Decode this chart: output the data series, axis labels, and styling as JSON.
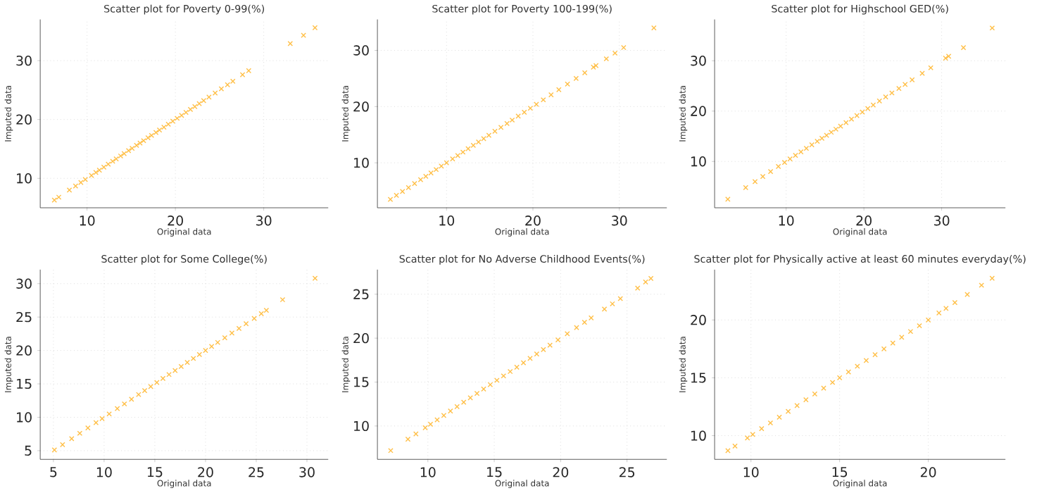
{
  "chart_data": [
    {
      "type": "scatter",
      "title": "Scatter plot for Poverty 0-99(%)",
      "xlabel": "Original data",
      "ylabel": "Imputed data",
      "color": "#ffbf47",
      "marker": "cross",
      "grid": true,
      "xlim": [
        4.7,
        37.3
      ],
      "ylim": [
        5,
        37
      ],
      "xticks": [
        10,
        20,
        30
      ],
      "yticks": [
        10,
        20,
        30
      ],
      "x": [
        6.3,
        6.8,
        8,
        8.7,
        9.3,
        9.8,
        10.5,
        11,
        11.4,
        11.9,
        12.4,
        12.9,
        13.3,
        13.8,
        14.2,
        14.7,
        15.1,
        15.6,
        16,
        16.4,
        16.9,
        17.3,
        17.8,
        18.2,
        18.7,
        19.2,
        19.7,
        20.2,
        20.7,
        21.2,
        21.7,
        22.2,
        22.7,
        23.2,
        23.8,
        24.5,
        25.2,
        25.9,
        26.5,
        27.6,
        28.3,
        33,
        34.5,
        35.8
      ],
      "values": [
        6.3,
        6.8,
        8,
        8.7,
        9.3,
        9.8,
        10.5,
        11,
        11.4,
        11.9,
        12.4,
        12.9,
        13.3,
        13.8,
        14.2,
        14.7,
        15.1,
        15.6,
        16,
        16.4,
        16.9,
        17.3,
        17.8,
        18.2,
        18.7,
        19.2,
        19.7,
        20.2,
        20.7,
        21.2,
        21.7,
        22.2,
        22.7,
        23.2,
        23.8,
        24.5,
        25.2,
        25.9,
        26.5,
        27.6,
        28.3,
        32.9,
        34.3,
        35.6
      ]
    },
    {
      "type": "scatter",
      "title": "Scatter plot for Poverty 100-199(%)",
      "xlabel": "Original data",
      "ylabel": "Imputed data",
      "color": "#ffbf47",
      "marker": "cross",
      "grid": true,
      "xlim": [
        2,
        35.5
      ],
      "ylim": [
        2,
        35.5
      ],
      "xticks": [
        10,
        20,
        30
      ],
      "yticks": [
        10,
        20,
        30
      ],
      "x": [
        3.5,
        4.2,
        4.9,
        5.6,
        6.3,
        7,
        7.6,
        8.2,
        8.8,
        9.4,
        10,
        10.7,
        11.3,
        11.9,
        12.5,
        13.1,
        13.7,
        14.3,
        14.9,
        15.6,
        16.3,
        17,
        17.6,
        18.3,
        19,
        19.7,
        20.4,
        21.2,
        22.1,
        23,
        24,
        25,
        26,
        27,
        27.3,
        28.5,
        29.5,
        30.5,
        34
      ],
      "values": [
        3.5,
        4.2,
        4.9,
        5.6,
        6.3,
        7,
        7.6,
        8.2,
        8.8,
        9.4,
        10,
        10.7,
        11.3,
        11.9,
        12.5,
        13.1,
        13.7,
        14.3,
        14.9,
        15.6,
        16.3,
        17,
        17.6,
        18.3,
        19,
        19.7,
        20.4,
        21.2,
        22.1,
        23,
        24,
        25,
        26,
        27,
        27.3,
        28.5,
        29.5,
        30.5,
        34
      ]
    },
    {
      "type": "scatter",
      "title": "Scatter plot for Highschool GED(%)",
      "xlabel": "Original data",
      "ylabel": "Imputed data",
      "color": "#ffbf47",
      "marker": "cross",
      "grid": true,
      "xlim": [
        0.8,
        38.2
      ],
      "ylim": [
        0.8,
        38.2
      ],
      "xticks": [
        10,
        20,
        30
      ],
      "yticks": [
        10,
        20,
        30
      ],
      "x": [
        2.5,
        4.8,
        6,
        7,
        8,
        9,
        9.8,
        10.5,
        11.2,
        11.9,
        12.6,
        13.3,
        14,
        14.6,
        15.2,
        15.8,
        16.4,
        17,
        17.7,
        18.4,
        19.1,
        19.8,
        20.5,
        21.2,
        22,
        22.8,
        23.6,
        24.5,
        25.3,
        26.2,
        27.5,
        28.6,
        30.5,
        30.9,
        32.8,
        36.5
      ],
      "values": [
        2.5,
        4.8,
        6,
        7,
        8,
        9,
        9.8,
        10.5,
        11.2,
        11.9,
        12.6,
        13.3,
        14,
        14.6,
        15.2,
        15.8,
        16.4,
        17,
        17.7,
        18.4,
        19.1,
        19.8,
        20.5,
        21.2,
        22,
        22.8,
        23.6,
        24.5,
        25.3,
        26.2,
        27.5,
        28.6,
        30.5,
        30.9,
        32.6,
        36.5
      ]
    },
    {
      "type": "scatter",
      "title": "Scatter plot for Some College(%)",
      "xlabel": "Original data",
      "ylabel": "Imputed data",
      "color": "#ffbf47",
      "marker": "cross",
      "grid": true,
      "xlim": [
        3.7,
        32.1
      ],
      "ylim": [
        3.7,
        32.1
      ],
      "xticks": [
        5,
        10,
        15,
        20,
        25,
        30
      ],
      "yticks": [
        5,
        10,
        15,
        20,
        25,
        30
      ],
      "x": [
        5.1,
        5.9,
        6.8,
        7.6,
        8.4,
        9.2,
        9.8,
        10.5,
        11.3,
        12,
        12.7,
        13.4,
        14,
        14.6,
        15.2,
        15.8,
        16.4,
        17,
        17.6,
        18.2,
        18.8,
        19.4,
        20,
        20.6,
        21.2,
        21.9,
        22.6,
        23.3,
        24,
        24.8,
        25.5,
        26,
        27.6,
        30.8
      ],
      "values": [
        5.1,
        5.9,
        6.8,
        7.6,
        8.4,
        9.2,
        9.8,
        10.5,
        11.3,
        12,
        12.7,
        13.4,
        14,
        14.6,
        15.2,
        15.8,
        16.4,
        17,
        17.6,
        18.2,
        18.8,
        19.4,
        20,
        20.6,
        21.2,
        21.9,
        22.6,
        23.3,
        24,
        24.8,
        25.5,
        26,
        27.6,
        30.8
      ]
    },
    {
      "type": "scatter",
      "title": "Scatter plot for No Adverse Childhood Events(%)",
      "xlabel": "Original data",
      "ylabel": "Imputed data",
      "color": "#ffbf47",
      "marker": "cross",
      "grid": true,
      "xlim": [
        6.2,
        28
      ],
      "ylim": [
        6.2,
        27.8
      ],
      "xticks": [
        10,
        15,
        20,
        25
      ],
      "yticks": [
        10,
        15,
        20,
        25
      ],
      "x": [
        7.2,
        8.5,
        9.1,
        9.8,
        10.2,
        10.7,
        11.2,
        11.7,
        12.2,
        12.7,
        13.2,
        13.7,
        14.2,
        14.7,
        15.2,
        15.7,
        16.2,
        16.7,
        17.2,
        17.7,
        18.2,
        18.7,
        19.2,
        19.8,
        20.5,
        21.2,
        21.8,
        22.3,
        23.3,
        23.9,
        24.5,
        25.8,
        26.4,
        26.8
      ],
      "values": [
        7.2,
        8.5,
        9.1,
        9.8,
        10.2,
        10.7,
        11.2,
        11.7,
        12.2,
        12.7,
        13.2,
        13.7,
        14.2,
        14.7,
        15.2,
        15.7,
        16.2,
        16.7,
        17.2,
        17.7,
        18.2,
        18.7,
        19.2,
        19.8,
        20.5,
        21.2,
        21.8,
        22.3,
        23.3,
        23.9,
        24.5,
        25.7,
        26.4,
        26.8
      ]
    },
    {
      "type": "scatter",
      "title": "Scatter plot for Physically active at least 60 minutes everyday(%)",
      "xlabel": "Original data",
      "ylabel": "Imputed data",
      "color": "#ffbf47",
      "marker": "cross",
      "grid": true,
      "xlim": [
        7.95,
        24.35
      ],
      "ylim": [
        7.95,
        24.35
      ],
      "xticks": [
        10,
        15,
        20
      ],
      "yticks": [
        10,
        15,
        20
      ],
      "x": [
        8.7,
        9.1,
        9.8,
        10.1,
        10.6,
        11.1,
        11.6,
        12.1,
        12.6,
        13.1,
        13.6,
        14.1,
        14.6,
        15,
        15.5,
        16,
        16.5,
        17,
        17.5,
        18,
        18.5,
        19,
        19.5,
        20,
        20.6,
        21,
        21.5,
        22.2,
        23,
        23.6
      ],
      "values": [
        8.7,
        9.1,
        9.8,
        10.1,
        10.6,
        11.1,
        11.6,
        12.1,
        12.6,
        13.1,
        13.6,
        14.1,
        14.6,
        15,
        15.5,
        16,
        16.5,
        17,
        17.5,
        18,
        18.5,
        19,
        19.5,
        20,
        20.6,
        21,
        21.5,
        22.2,
        23,
        23.6
      ]
    }
  ]
}
